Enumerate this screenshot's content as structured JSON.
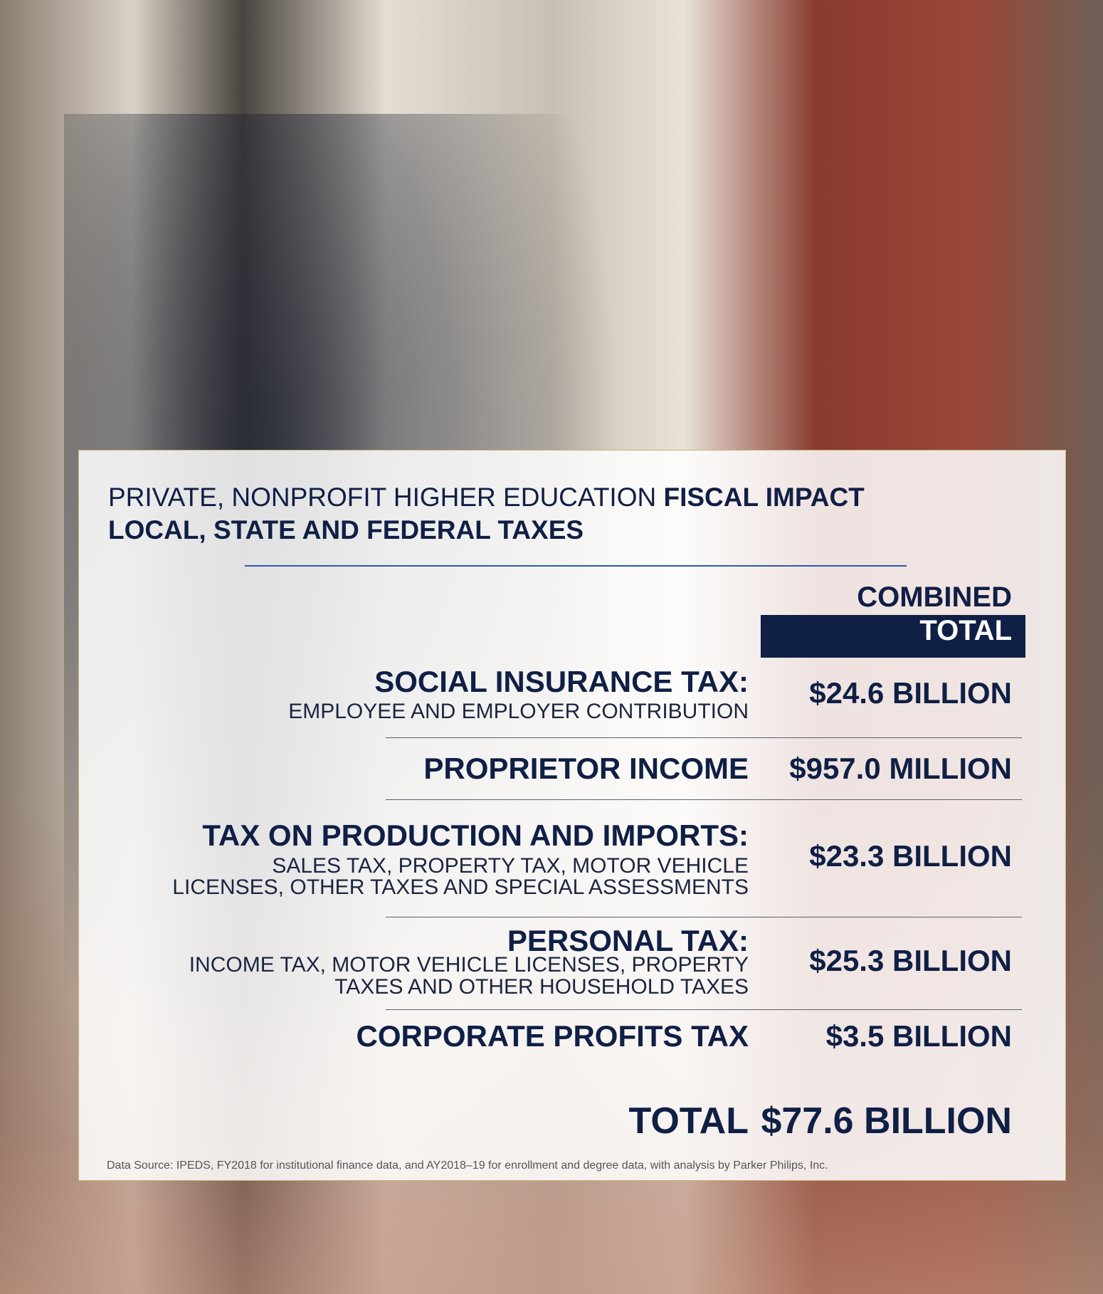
{
  "title": {
    "lead": "PRIVATE, NONPROFIT HIGHER EDUCATION",
    "emphasis": "FISCAL IMPACT",
    "line2": "LOCAL, STATE AND FEDERAL TAXES"
  },
  "header": {
    "line1": "COMBINED",
    "line2": "TOTAL"
  },
  "rows": [
    {
      "label": "SOCIAL INSURANCE TAX:",
      "description": [
        "EMPLOYEE AND EMPLOYER CONTRIBUTION"
      ],
      "value": "$24.6 BILLION"
    },
    {
      "label": "PROPRIETOR INCOME",
      "description": [],
      "value": "$957.0 MILLION"
    },
    {
      "label": "TAX ON PRODUCTION AND IMPORTS:",
      "description": [
        "SALES TAX, PROPERTY TAX, MOTOR VEHICLE",
        "LICENSES, OTHER TAXES AND SPECIAL ASSESSMENTS"
      ],
      "value": "$23.3 BILLION"
    },
    {
      "label": "PERSONAL TAX:",
      "description": [
        "INCOME TAX, MOTOR VEHICLE LICENSES, PROPERTY",
        "TAXES AND OTHER HOUSEHOLD TAXES"
      ],
      "value": "$25.3 BILLION"
    },
    {
      "label": "CORPORATE PROFITS TAX",
      "description": [],
      "value": "$3.5 BILLION"
    }
  ],
  "total": {
    "label": "TOTAL",
    "value": "$77.6 BILLION"
  },
  "source": "Data Source: IPEDS, FY2018 for institutional finance data, and AY2018–19 for enrollment and degree data, with analysis by Parker Philips, Inc."
}
